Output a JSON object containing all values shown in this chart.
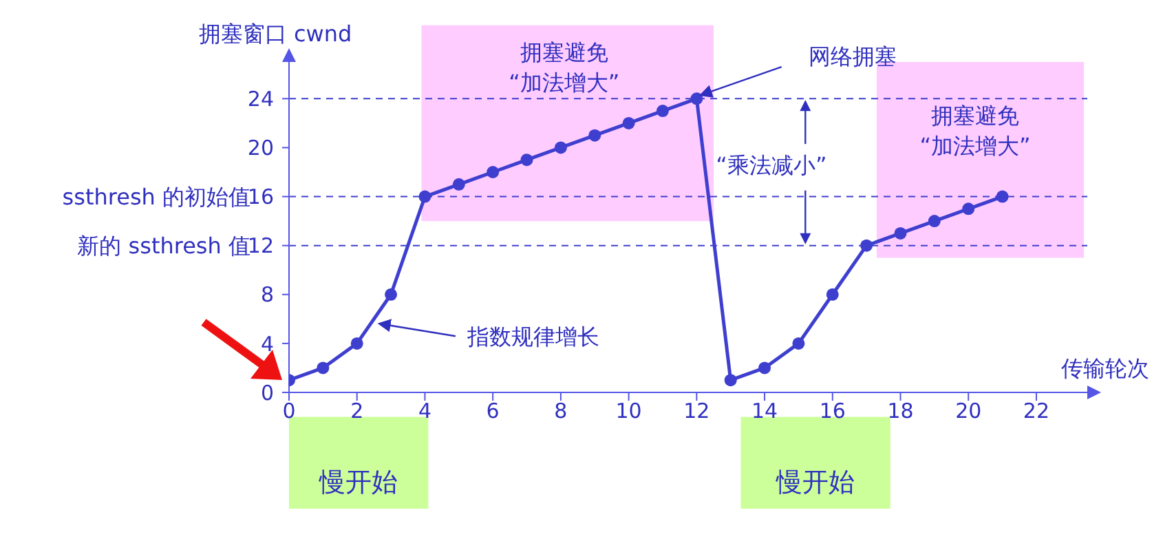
{
  "chart_data": {
    "type": "line",
    "xlabel": "传输轮次",
    "ylabel": "拥塞窗口 cwnd",
    "x": [
      0,
      1,
      2,
      3,
      4,
      5,
      6,
      7,
      8,
      9,
      10,
      11,
      12,
      13,
      14,
      15,
      16,
      17,
      18,
      19,
      20,
      21
    ],
    "series": [
      {
        "color": "#3f3fcf",
        "values": [
          1,
          2,
          4,
          8,
          16,
          17,
          18,
          19,
          20,
          21,
          22,
          23,
          24,
          1,
          2,
          4,
          8,
          12,
          13,
          14,
          15,
          16
        ]
      }
    ],
    "xlim": [
      0,
      23.5
    ],
    "xticks": [
      0,
      2,
      4,
      6,
      8,
      10,
      12,
      14,
      16,
      18,
      20,
      22
    ],
    "ylim": [
      0,
      27
    ],
    "yticks": [
      0,
      4,
      8,
      12,
      16,
      20,
      24
    ],
    "ref_lines": [
      {
        "axis": "y",
        "value": 24,
        "label": null,
        "line_style": "dashed",
        "color": "#3f3fcf"
      },
      {
        "axis": "y",
        "value": 16,
        "label": "ssthresh 的初始值",
        "line_style": "dashed",
        "color": "#3f3fcf"
      },
      {
        "axis": "y",
        "value": 12,
        "label": "新的 ssthresh 值",
        "line_style": "dashed",
        "color": "#3f3fcf"
      }
    ],
    "annotations": [
      "拥塞避免 “加法增大”",
      "拥塞避免 “加法增大”",
      {
        "text": "网络拥塞",
        "x": 12,
        "y": 24
      },
      {
        "text": "“乘法减小”",
        "x": 15.2,
        "y": 12
      },
      "指数规律增长",
      "慢开始",
      "慢开始"
    ],
    "marker": "circle",
    "line_style": "solid"
  }
}
